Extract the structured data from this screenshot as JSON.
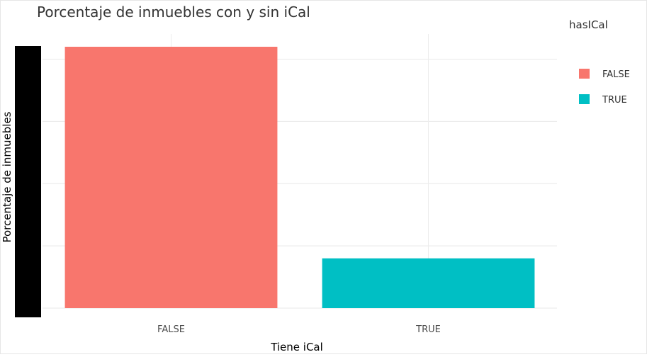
{
  "chart_data": {
    "type": "bar",
    "title": "Porcentaje de inmuebles con y sin iCal",
    "xlabel": "Tiene iCal",
    "ylabel": "Porcentaje de inmuebles",
    "categories": [
      "FALSE",
      "TRUE"
    ],
    "values": [
      84,
      16
    ],
    "ylim": [
      0,
      84
    ],
    "y_gridlines": [
      0,
      20,
      40,
      60,
      80
    ],
    "grid": true,
    "legend": {
      "title": "hasICal",
      "placement": "right",
      "entries": [
        {
          "label": "FALSE",
          "color": "#F8766D"
        },
        {
          "label": "TRUE",
          "color": "#00BFC4"
        }
      ]
    },
    "colors": [
      "#F8766D",
      "#00BFC4"
    ]
  }
}
